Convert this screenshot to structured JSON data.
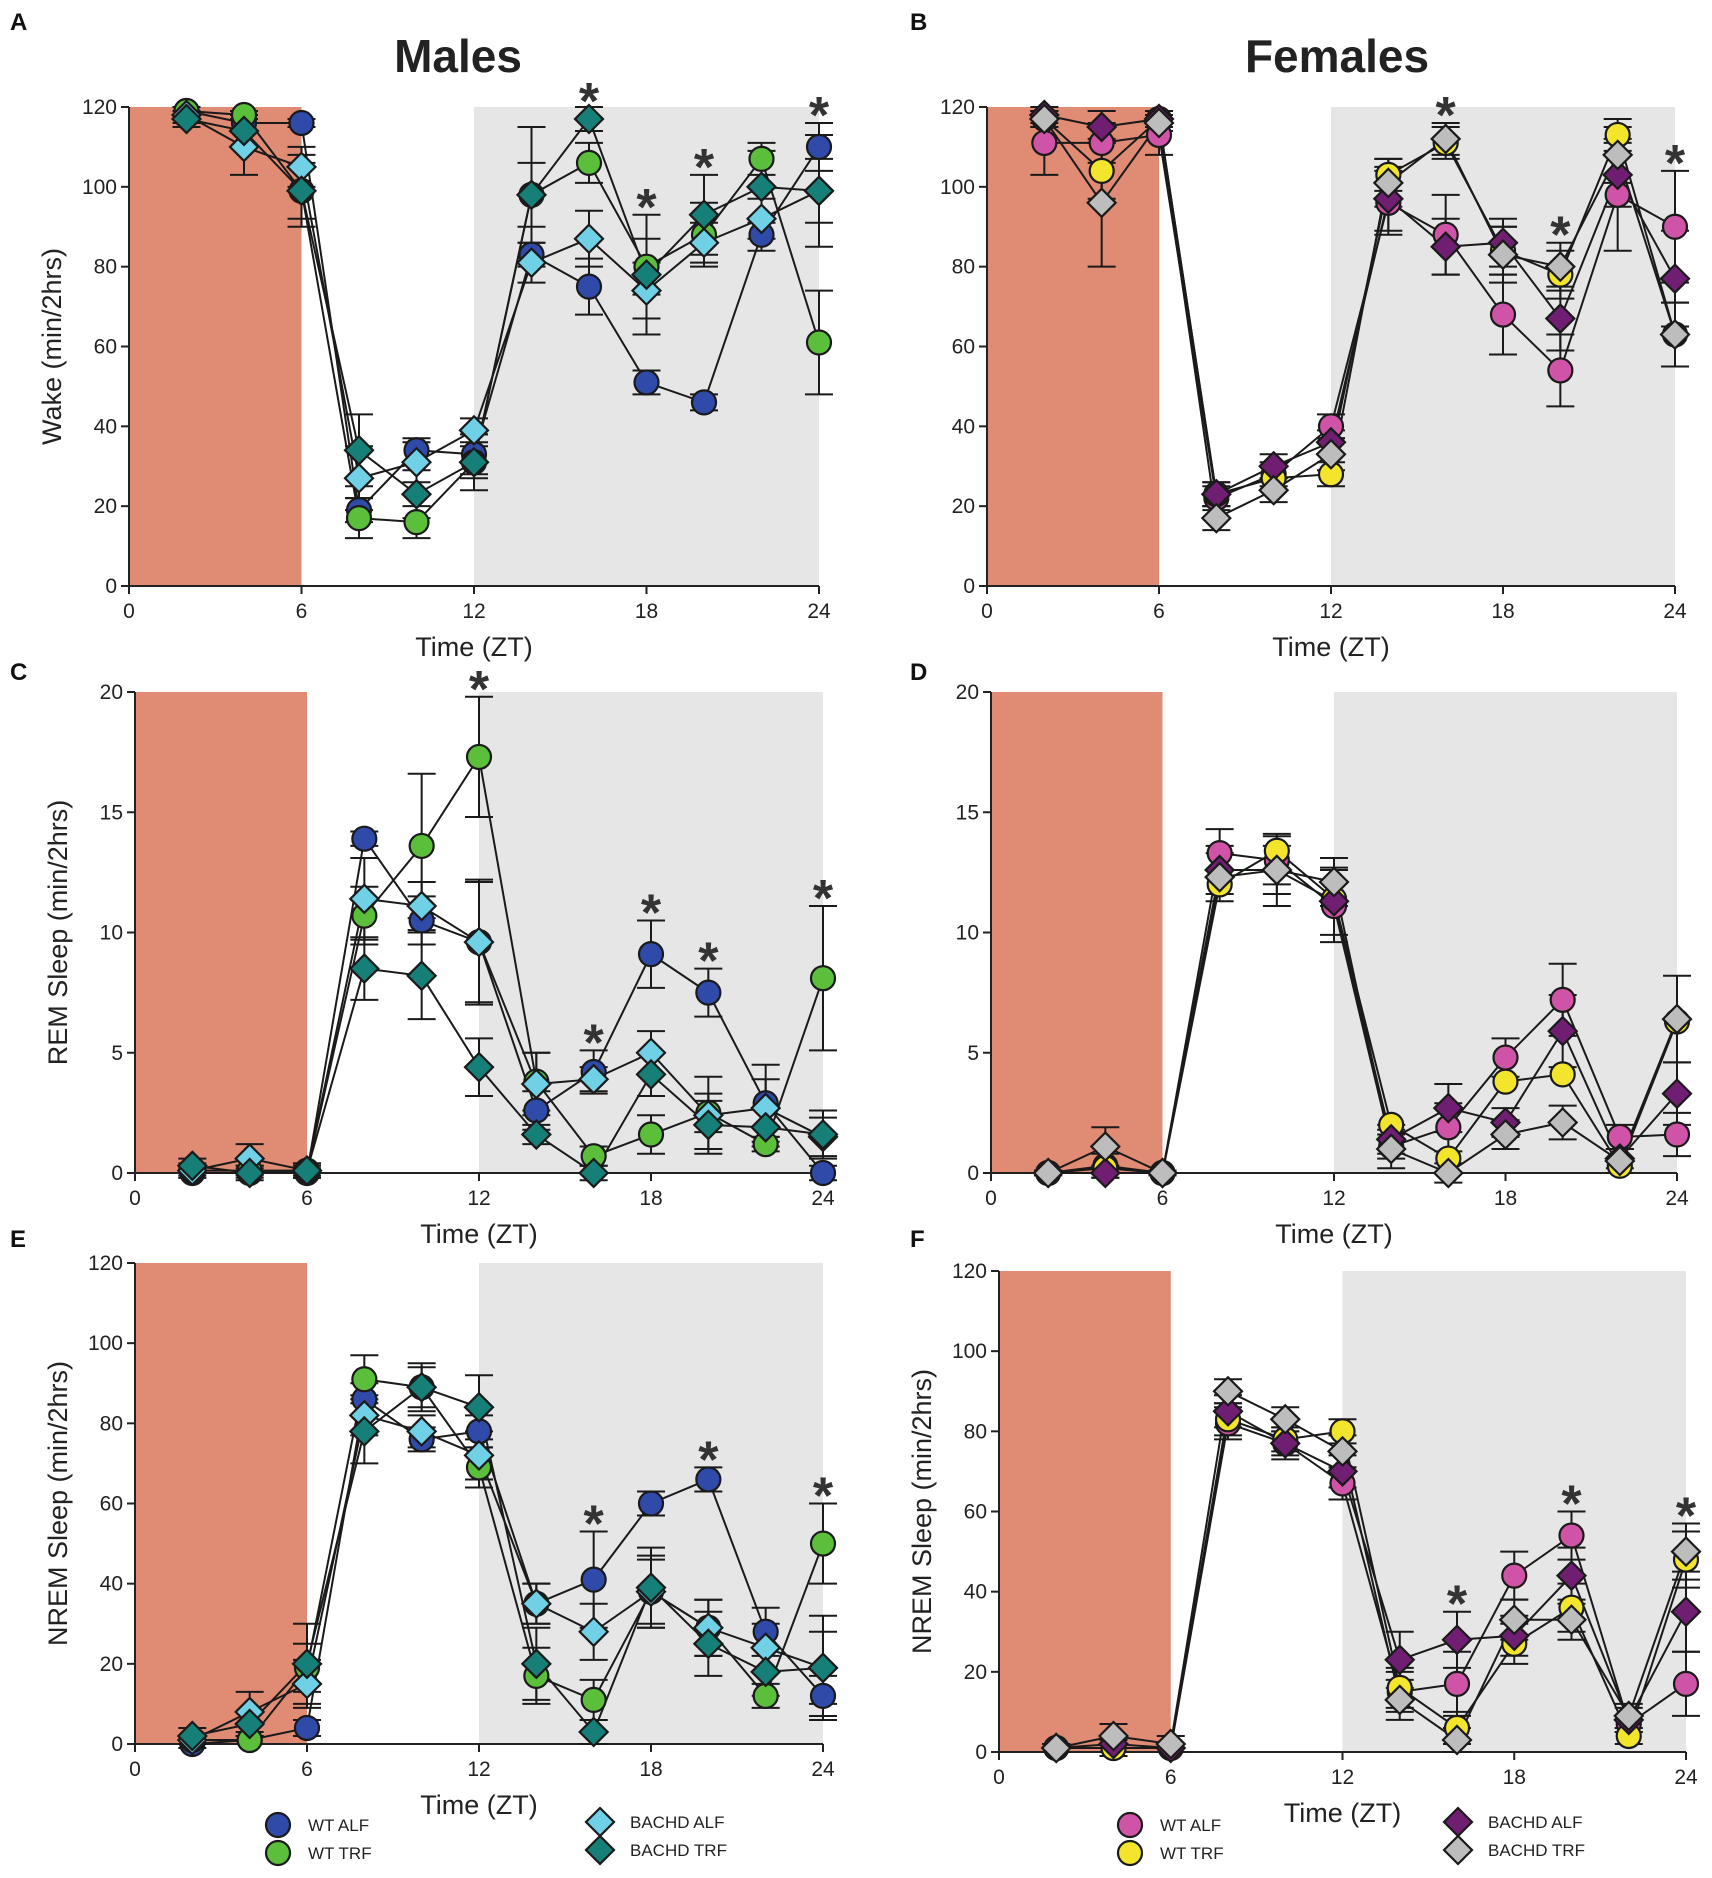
{
  "column_titles": {
    "males": "Males",
    "females": "Females"
  },
  "colors": {
    "light_phase": "#e08b73",
    "dark_phase": "#e6e6e6",
    "WT ALF males": "#2f4aa8",
    "WT TRF males": "#5bbf3c",
    "BACHD ALF males": "#6fd0e6",
    "BACHD TRF males": "#167f78",
    "WT ALF females": "#cf54a8",
    "WT TRF females": "#f2e52c",
    "BACHD ALF females": "#6f1e72",
    "BACHD TRF females": "#bdbdbd"
  },
  "legends": {
    "males": [
      {
        "name": "WT ALF",
        "marker": "circle",
        "color_key": "WT ALF males"
      },
      {
        "name": "WT TRF",
        "marker": "circle",
        "color_key": "WT TRF males"
      },
      {
        "name": "BACHD ALF",
        "marker": "diamond",
        "color_key": "BACHD ALF males"
      },
      {
        "name": "BACHD TRF",
        "marker": "diamond",
        "color_key": "BACHD TRF males"
      }
    ],
    "females": [
      {
        "name": "WT ALF",
        "marker": "circle",
        "color_key": "WT ALF females"
      },
      {
        "name": "WT TRF",
        "marker": "circle",
        "color_key": "WT TRF females"
      },
      {
        "name": "BACHD ALF",
        "marker": "diamond",
        "color_key": "BACHD ALF females"
      },
      {
        "name": "BACHD TRF",
        "marker": "diamond",
        "color_key": "BACHD TRF females"
      }
    ]
  },
  "chart_data": [
    {
      "panel": "A",
      "type": "line",
      "group": "males",
      "xlabel": "Time (ZT)",
      "ylabel": "Wake (min/2hrs)",
      "xlim": [
        0,
        24
      ],
      "ylim": [
        0,
        120
      ],
      "xticks": [
        0,
        6,
        12,
        18,
        24
      ],
      "yticks": [
        0,
        20,
        40,
        60,
        80,
        100,
        120
      ],
      "light_shade": [
        0,
        6
      ],
      "dark_shade": [
        12,
        24
      ],
      "x": [
        2,
        4,
        6,
        8,
        10,
        12,
        14,
        16,
        18,
        20,
        22,
        24
      ],
      "significance_x": [
        16,
        18,
        20,
        24
      ],
      "series": [
        {
          "name": "WT ALF",
          "marker": "circle",
          "color_key": "WT ALF males",
          "values": [
            119,
            116,
            116,
            19,
            34,
            33,
            83,
            75,
            51,
            46,
            88,
            110
          ],
          "errors": [
            1,
            2,
            1,
            3,
            3,
            5,
            3,
            7,
            3,
            2,
            4,
            6
          ]
        },
        {
          "name": "WT TRF",
          "marker": "circle",
          "color_key": "WT TRF males",
          "values": [
            119,
            118,
            99,
            17,
            16,
            31,
            98,
            106,
            80,
            88,
            107,
            61
          ],
          "errors": [
            1,
            1,
            7,
            5,
            4,
            4,
            8,
            5,
            7,
            8,
            4,
            13
          ]
        },
        {
          "name": "BACHD ALF",
          "marker": "diamond",
          "color_key": "BACHD ALF males",
          "values": [
            118,
            110,
            105,
            27,
            31,
            39,
            81,
            87,
            74,
            86,
            92,
            99
          ],
          "errors": [
            2,
            7,
            5,
            8,
            5,
            3,
            5,
            7,
            7,
            5,
            5,
            8
          ]
        },
        {
          "name": "BACHD TRF",
          "marker": "diamond",
          "color_key": "BACHD TRF males",
          "values": [
            117,
            114,
            99,
            34,
            23,
            31,
            98,
            117,
            78,
            93,
            100,
            99
          ],
          "errors": [
            2,
            4,
            9,
            9,
            6,
            7,
            17,
            3,
            15,
            10,
            9,
            14
          ]
        }
      ]
    },
    {
      "panel": "B",
      "type": "line",
      "group": "females",
      "xlabel": "Time (ZT)",
      "ylabel": "",
      "xlim": [
        0,
        24
      ],
      "ylim": [
        0,
        120
      ],
      "xticks": [
        0,
        6,
        12,
        18,
        24
      ],
      "yticks": [
        0,
        20,
        40,
        60,
        80,
        100,
        120
      ],
      "light_shade": [
        0,
        6
      ],
      "dark_shade": [
        12,
        24
      ],
      "x": [
        2,
        4,
        6,
        8,
        10,
        12,
        14,
        16,
        18,
        20,
        22,
        24
      ],
      "significance_x": [
        16,
        20,
        24
      ],
      "series": [
        {
          "name": "WT ALF",
          "marker": "circle",
          "color_key": "WT ALF females",
          "values": [
            111,
            111,
            113,
            22,
            28,
            40,
            96,
            88,
            68,
            54,
            98,
            90
          ],
          "errors": [
            8,
            5,
            5,
            3,
            3,
            3,
            8,
            10,
            10,
            9,
            14,
            14
          ]
        },
        {
          "name": "WT TRF",
          "marker": "circle",
          "color_key": "WT TRF females",
          "values": [
            117,
            104,
            117,
            23,
            27,
            28,
            103,
            111,
            84,
            78,
            113,
            63
          ],
          "errors": [
            2,
            7,
            2,
            3,
            3,
            3,
            4,
            4,
            6,
            6,
            4,
            8
          ]
        },
        {
          "name": "BACHD ALF",
          "marker": "diamond",
          "color_key": "BACHD ALF females",
          "values": [
            118,
            115,
            117,
            23,
            30,
            36,
            97,
            85,
            86,
            67,
            103,
            77
          ],
          "errors": [
            2,
            4,
            2,
            3,
            3,
            3,
            8,
            7,
            6,
            8,
            8,
            12
          ]
        },
        {
          "name": "BACHD TRF",
          "marker": "diamond",
          "color_key": "BACHD TRF females",
          "values": [
            117,
            96,
            116,
            17,
            24,
            33,
            101,
            112,
            83,
            80,
            108,
            63
          ],
          "errors": [
            2,
            16,
            2,
            3,
            3,
            4,
            6,
            4,
            7,
            6,
            7,
            8
          ]
        }
      ]
    },
    {
      "panel": "C",
      "type": "line",
      "group": "males",
      "xlabel": "Time (ZT)",
      "ylabel": "REM Sleep (min/2hrs)",
      "xlim": [
        0,
        24
      ],
      "ylim": [
        0,
        20
      ],
      "xticks": [
        0,
        6,
        12,
        18,
        24
      ],
      "yticks": [
        0,
        5,
        10,
        15,
        20
      ],
      "light_shade": [
        0,
        6
      ],
      "dark_shade": [
        12,
        24
      ],
      "x": [
        2,
        4,
        6,
        8,
        10,
        12,
        14,
        16,
        18,
        20,
        22,
        24
      ],
      "significance_x": [
        12,
        16,
        18,
        20,
        24
      ],
      "series": [
        {
          "name": "WT ALF",
          "marker": "circle",
          "color_key": "WT ALF males",
          "values": [
            0,
            0,
            0,
            13.9,
            10.5,
            9.6,
            2.6,
            4.2,
            9.1,
            7.5,
            2.9,
            0
          ],
          "errors": [
            0.2,
            0.2,
            0.2,
            0.3,
            1.0,
            2.5,
            0.8,
            0.9,
            1.4,
            1.0,
            1.6,
            0.3
          ]
        },
        {
          "name": "WT TRF",
          "marker": "circle",
          "color_key": "WT TRF males",
          "values": [
            0.1,
            0.1,
            0.1,
            10.7,
            13.6,
            17.3,
            3.8,
            0.7,
            1.6,
            2.5,
            1.2,
            8.1
          ],
          "errors": [
            0.2,
            0.2,
            0.2,
            1.2,
            3.0,
            2.5,
            1.2,
            0.4,
            0.8,
            0.8,
            0.3,
            3.0
          ]
        },
        {
          "name": "BACHD ALF",
          "marker": "diamond",
          "color_key": "BACHD ALF males",
          "values": [
            0.1,
            0.6,
            0.1,
            11.4,
            11.1,
            9.6,
            3.7,
            3.9,
            5.0,
            2.4,
            2.7,
            1.5
          ],
          "errors": [
            0.3,
            0.6,
            0.3,
            1.7,
            1.0,
            2.6,
            1.3,
            0.5,
            0.9,
            1.6,
            1.2,
            0.8
          ]
        },
        {
          "name": "BACHD TRF",
          "marker": "diamond",
          "color_key": "BACHD TRF males",
          "values": [
            0.3,
            0,
            0.1,
            8.5,
            8.2,
            4.4,
            1.6,
            0,
            4.1,
            2.0,
            1.9,
            1.6
          ],
          "errors": [
            0.3,
            0.3,
            0.3,
            1.3,
            1.8,
            1.2,
            0.4,
            0.3,
            0.9,
            1.0,
            0.8,
            1.0
          ]
        }
      ]
    },
    {
      "panel": "D",
      "type": "line",
      "group": "females",
      "xlabel": "Time (ZT)",
      "ylabel": "",
      "xlim": [
        0,
        24
      ],
      "ylim": [
        0,
        20
      ],
      "xticks": [
        0,
        6,
        12,
        18,
        24
      ],
      "yticks": [
        0,
        5,
        10,
        15,
        20
      ],
      "light_shade": [
        0,
        6
      ],
      "dark_shade": [
        12,
        24
      ],
      "x": [
        2,
        4,
        6,
        8,
        10,
        12,
        14,
        16,
        18,
        20,
        22,
        24
      ],
      "significance_x": [],
      "series": [
        {
          "name": "WT ALF",
          "marker": "circle",
          "color_key": "WT ALF females",
          "values": [
            0,
            0.3,
            0,
            13.3,
            13.0,
            11.1,
            1.1,
            1.9,
            4.8,
            7.2,
            1.5,
            1.6
          ],
          "errors": [
            0.1,
            0.5,
            0.1,
            1.0,
            1.0,
            1.5,
            0.5,
            1.0,
            0.8,
            1.5,
            0.5,
            0.9
          ]
        },
        {
          "name": "WT TRF",
          "marker": "circle",
          "color_key": "WT TRF females",
          "values": [
            0,
            0.2,
            0,
            12.0,
            13.4,
            11.4,
            2.0,
            0.6,
            3.8,
            4.1,
            0.3,
            6.3
          ]
        },
        {
          "name": "BACHD ALF",
          "marker": "diamond",
          "color_key": "BACHD ALF females",
          "values": [
            0,
            0,
            0,
            12.6,
            12.6,
            11.3,
            1.4,
            2.7,
            2.1,
            5.9,
            0.6,
            3.3
          ],
          "errors": [
            0.1,
            0.2,
            0.1,
            1.0,
            1.0,
            1.4,
            0.6,
            1.0,
            0.6,
            1.5,
            0.4,
            1.3
          ]
        },
        {
          "name": "BACHD TRF",
          "marker": "diamond",
          "color_key": "BACHD TRF females",
          "values": [
            0,
            1.1,
            0,
            12.3,
            12.6,
            12.1,
            1.0,
            0,
            1.6,
            2.1,
            0.5,
            6.4
          ],
          "errors": [
            0.1,
            0.8,
            0.1,
            1.0,
            1.5,
            1.0,
            0.8,
            0.4,
            0.6,
            0.7,
            0.5,
            1.8
          ]
        }
      ]
    },
    {
      "panel": "E",
      "type": "line",
      "group": "males",
      "xlabel": "Time (ZT)",
      "ylabel": "NREM Sleep (min/2hrs)",
      "xlim": [
        0,
        24
      ],
      "ylim": [
        0,
        120
      ],
      "xticks": [
        0,
        6,
        12,
        18,
        24
      ],
      "yticks": [
        0,
        20,
        40,
        60,
        80,
        100,
        120
      ],
      "light_shade": [
        0,
        6
      ],
      "dark_shade": [
        12,
        24
      ],
      "x": [
        2,
        4,
        6,
        8,
        10,
        12,
        14,
        16,
        18,
        20,
        22,
        24
      ],
      "significance_x": [
        16,
        20,
        24
      ],
      "series": [
        {
          "name": "WT ALF",
          "marker": "circle",
          "color_key": "WT ALF males",
          "values": [
            0,
            1,
            4,
            86,
            76,
            78,
            35,
            41,
            60,
            66,
            28,
            12
          ],
          "errors": [
            1,
            1,
            2,
            4,
            3,
            4,
            5,
            12,
            3,
            3,
            6,
            5
          ]
        },
        {
          "name": "WT TRF",
          "marker": "circle",
          "color_key": "WT TRF males",
          "values": [
            1,
            1,
            19,
            91,
            89,
            69,
            17,
            11,
            38,
            29,
            12,
            50
          ],
          "errors": [
            1,
            1,
            6,
            6,
            5,
            5,
            7,
            5,
            9,
            7,
            3,
            10
          ]
        },
        {
          "name": "BACHD ALF",
          "marker": "diamond",
          "color_key": "BACHD ALF males",
          "values": [
            1,
            8,
            15,
            82,
            78,
            72,
            35,
            28,
            38,
            29,
            24,
            19
          ],
          "errors": [
            1,
            5,
            6,
            5,
            4,
            6,
            5,
            7,
            8,
            7,
            6,
            9
          ]
        },
        {
          "name": "BACHD TRF",
          "marker": "diamond",
          "color_key": "BACHD TRF males",
          "values": [
            2,
            5,
            20,
            78,
            89,
            84,
            20,
            3,
            39,
            25,
            18,
            19
          ],
          "errors": [
            2,
            3,
            10,
            8,
            6,
            8,
            9,
            3,
            10,
            8,
            6,
            13
          ]
        }
      ]
    },
    {
      "panel": "F",
      "type": "line",
      "group": "females",
      "xlabel": "Time (ZT)",
      "ylabel": "NREM Sleep (min/2hrs)",
      "xlim": [
        0,
        24
      ],
      "ylim": [
        0,
        120
      ],
      "xticks": [
        0,
        6,
        12,
        18,
        24
      ],
      "yticks": [
        0,
        20,
        40,
        60,
        80,
        100,
        120
      ],
      "light_shade": [
        0,
        6
      ],
      "dark_shade": [
        12,
        24
      ],
      "x": [
        2,
        4,
        6,
        8,
        10,
        12,
        14,
        16,
        18,
        20,
        22,
        24
      ],
      "significance_x": [
        16,
        20,
        24
      ],
      "series": [
        {
          "name": "WT ALF",
          "marker": "circle",
          "color_key": "WT ALF females",
          "values": [
            1,
            1,
            1,
            82,
            77,
            67,
            15,
            17,
            44,
            54,
            7,
            17
          ],
          "errors": [
            1,
            2,
            1,
            4,
            4,
            4,
            5,
            8,
            6,
            6,
            2,
            8
          ]
        },
        {
          "name": "WT TRF",
          "marker": "circle",
          "color_key": "WT TRF females",
          "values": [
            1,
            1,
            1,
            83,
            78,
            80,
            16,
            6,
            27,
            36,
            4,
            48
          ],
          "errors": [
            1,
            1,
            1,
            4,
            3,
            3,
            5,
            4,
            5,
            6,
            2,
            7
          ]
        },
        {
          "name": "BACHD ALF",
          "marker": "diamond",
          "color_key": "BACHD ALF females",
          "values": [
            1,
            2,
            1,
            85,
            77,
            70,
            23,
            28,
            29,
            44,
            8,
            35
          ],
          "errors": [
            1,
            2,
            1,
            4,
            3,
            4,
            7,
            7,
            5,
            7,
            3,
            10
          ]
        },
        {
          "name": "BACHD TRF",
          "marker": "diamond",
          "color_key": "BACHD TRF females",
          "values": [
            1,
            4,
            2,
            90,
            83,
            75,
            13,
            3,
            33,
            33,
            9,
            50
          ],
          "errors": [
            1,
            3,
            2,
            3,
            3,
            4,
            5,
            3,
            5,
            5,
            3,
            7
          ]
        }
      ]
    }
  ]
}
